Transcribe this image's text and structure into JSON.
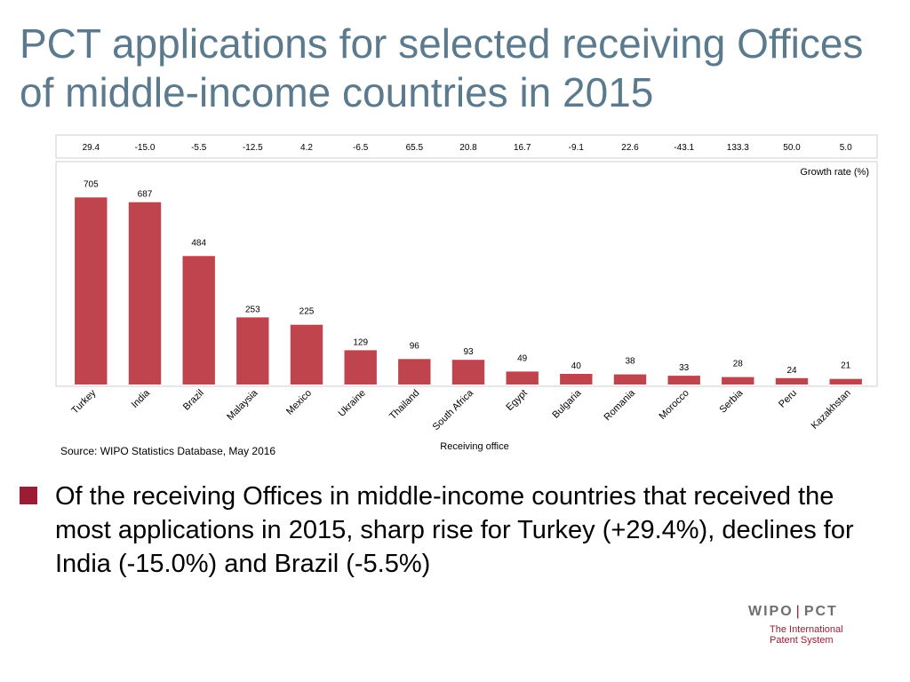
{
  "slide": {
    "title": "PCT applications for selected receiving Offices of middle-income countries in 2015",
    "source": "Source: WIPO Statistics Database, May 2016",
    "bullet": "Of the receiving Offices in middle-income countries that received the most applications in 2015, sharp rise for Turkey (+29.4%), declines for India (-15.0%) and Brazil (-5.5%)",
    "accent_color": "#9b1c35"
  },
  "chart_data": {
    "type": "bar",
    "title": "",
    "xlabel": "Receiving office",
    "ylabel": "",
    "growth_label": "Growth rate (%)",
    "categories": [
      "Turkey",
      "India",
      "Brazil",
      "Malaysia",
      "Mexico",
      "Ukraine",
      "Thailand",
      "South Africa",
      "Egypt",
      "Bulgaria",
      "Romania",
      "Morocco",
      "Serbia",
      "Peru",
      "Kazakhstan"
    ],
    "values": [
      705,
      687,
      484,
      253,
      225,
      129,
      96,
      93,
      49,
      40,
      38,
      33,
      28,
      24,
      21
    ],
    "growth_rates": [
      "29.4",
      "-15.0",
      "-5.5",
      "-12.5",
      "4.2",
      "-6.5",
      "65.5",
      "20.8",
      "16.7",
      "-9.1",
      "22.6",
      "-43.1",
      "133.3",
      "50.0",
      "5.0"
    ],
    "ylim": [
      0,
      750
    ],
    "grid": false,
    "bar_color": "#c0444d",
    "x_tick_rotation": "angled"
  },
  "logo": {
    "left": "WIPO",
    "right": "PCT",
    "line1": "The International",
    "line2": "Patent System"
  }
}
